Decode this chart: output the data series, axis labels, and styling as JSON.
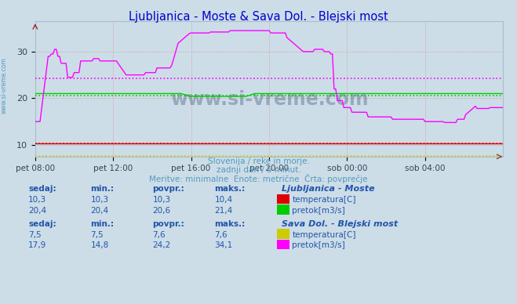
{
  "title": "Ljubljanica - Moste & Sava Dol. - Blejski most",
  "title_color": "#0000cc",
  "bg_color": "#ccdde8",
  "plot_bg_color": "#ccdde8",
  "grid_color": "#dd9999",
  "x_labels": [
    "pet 08:00",
    "pet 12:00",
    "pet 16:00",
    "pet 20:00",
    "sob 00:00",
    "sob 04:00"
  ],
  "x_ticks": [
    0,
    48,
    96,
    144,
    192,
    240
  ],
  "x_max": 288,
  "ylim": [
    7.5,
    36.5
  ],
  "yticks": [
    10,
    20,
    30
  ],
  "subtitle1": "Slovenija / reke in morje.",
  "subtitle2": "zadnji dan / 5 minut.",
  "subtitle3": "Meritve: minimalne  Enote: metrične  Črta: povprečje",
  "subtitle_color": "#5599bb",
  "watermark": "www.si-vreme.com",
  "lj_temp_color": "#dd0000",
  "lj_flow_color": "#00cc00",
  "sava_temp_color": "#cccc00",
  "sava_flow_color": "#ff00ff",
  "avg_lj_temp": 10.3,
  "avg_lj_flow": 20.6,
  "avg_sava_temp": 7.6,
  "avg_sava_flow": 24.2,
  "table": {
    "lj_label": "Ljubljanica - Moste",
    "sava_label": "Sava Dol. - Blejski most",
    "headers": [
      "sedaj:",
      "min.:",
      "povpr.:",
      "maks.:"
    ],
    "lj_temp_vals": [
      "10,3",
      "10,3",
      "10,3",
      "10,4"
    ],
    "lj_flow_vals": [
      "20,4",
      "20,4",
      "20,6",
      "21,4"
    ],
    "lj_temp_unit": "temperatura[C]",
    "lj_flow_unit": "pretok[m3/s]",
    "sava_temp_vals": [
      "7,5",
      "7,5",
      "7,6",
      "7,6"
    ],
    "sava_flow_vals": [
      "17,9",
      "14,8",
      "24,2",
      "34,1"
    ],
    "sava_temp_unit": "temperatura[C]",
    "sava_flow_unit": "pretok[m3/s]"
  }
}
